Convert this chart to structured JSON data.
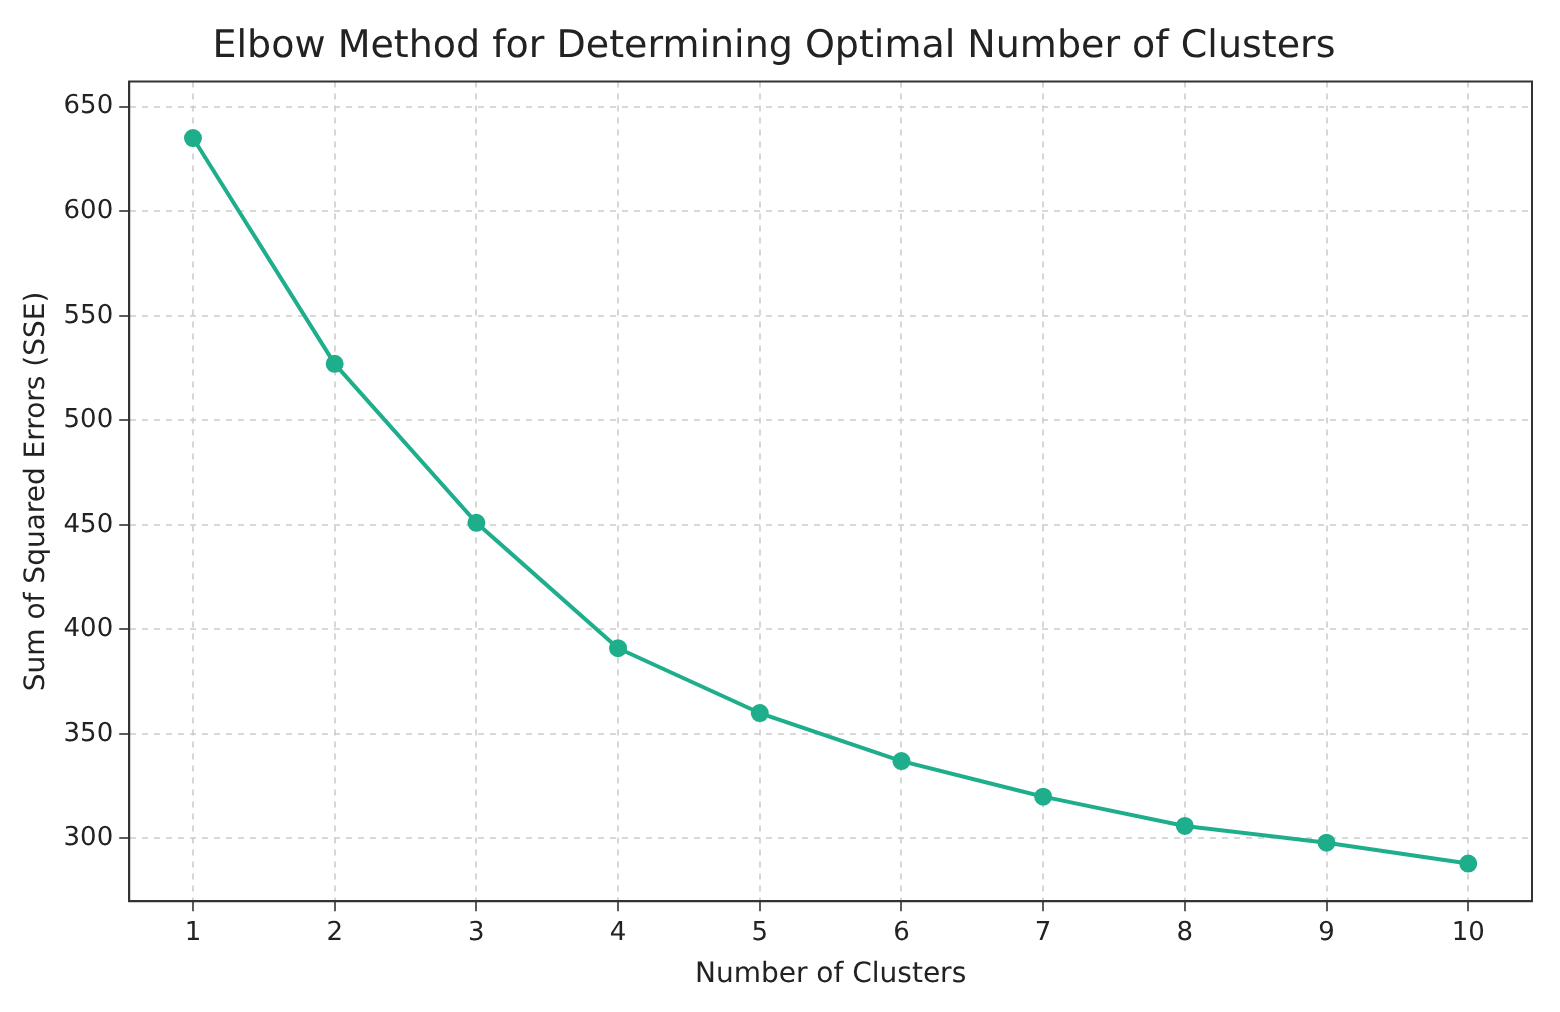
{
  "chart_data": {
    "type": "line",
    "title": "Elbow Method for Determining Optimal Number of Clusters",
    "xlabel": "Number of Clusters",
    "ylabel": "Sum of Squared Errors (SSE)",
    "x": [
      1,
      2,
      3,
      4,
      5,
      6,
      7,
      8,
      9,
      10
    ],
    "series": [
      {
        "color": "#1fae8c",
        "values": [
          635,
          527,
          451,
          391,
          360,
          337,
          320,
          306,
          298,
          288
        ]
      }
    ],
    "xlim": [
      0.55,
      10.45
    ],
    "xticks": [
      1,
      2,
      3,
      4,
      5,
      6,
      7,
      8,
      9,
      10
    ],
    "ylim": [
      270,
      662
    ],
    "yticks": [
      300,
      350,
      400,
      450,
      500,
      550,
      600,
      650
    ],
    "grid": true,
    "marker": "circle",
    "line_style": "solid"
  }
}
